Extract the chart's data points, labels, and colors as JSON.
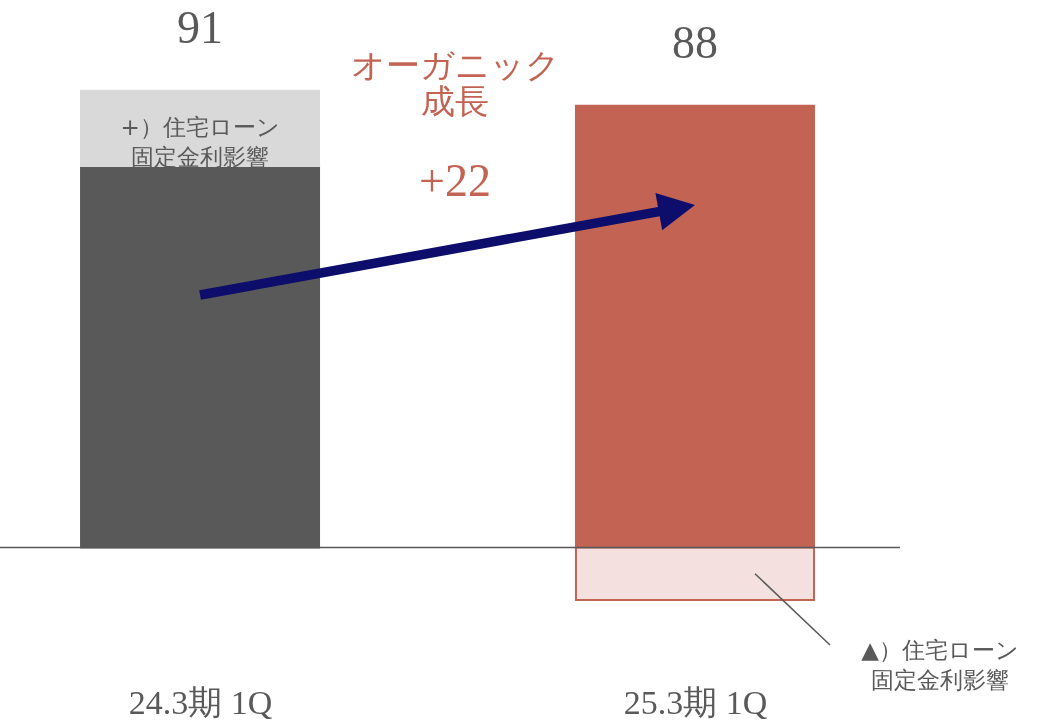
{
  "chart_data": {
    "type": "bar",
    "stacked": true,
    "categories": [
      "24.3期 1Q",
      "25.3期 1Q"
    ],
    "series": [
      {
        "color": "#595959",
        "values": [
          76,
          null
        ]
      },
      {
        "name": "+）住宅ローン固定金利影響",
        "color": "#d9d9d9",
        "values": [
          15,
          null
        ]
      },
      {
        "color": "#c26353",
        "values": [
          null,
          88
        ],
        "value_labels": [
          null,
          "88"
        ]
      },
      {
        "name": "▲）住宅ローン固定金利影響",
        "color": "#f4e0de",
        "values": [
          null,
          -10.5
        ]
      }
    ],
    "totals": [
      "91",
      null
    ],
    "annotations": [
      "オーガニック成長",
      "+22"
    ]
  }
}
